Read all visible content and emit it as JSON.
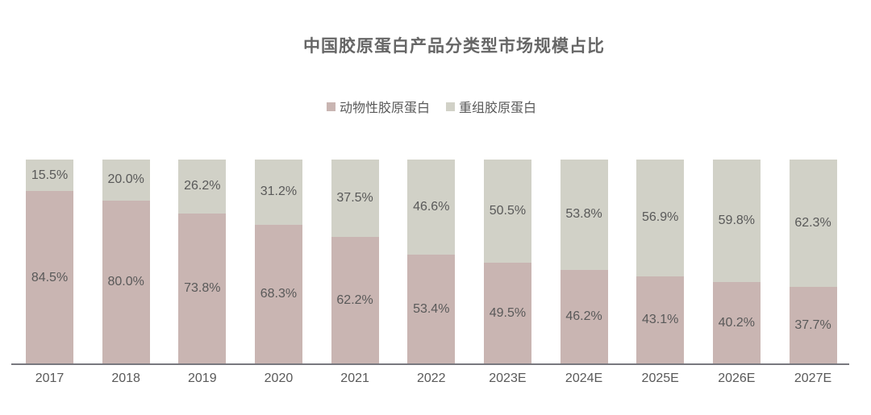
{
  "chart_data": {
    "type": "bar",
    "stacked": true,
    "percent": true,
    "title": "中国胶原蛋白产品分类型市场规模占比",
    "categories": [
      "2017",
      "2018",
      "2019",
      "2020",
      "2021",
      "2022",
      "2023E",
      "2024E",
      "2025E",
      "2026E",
      "2027E"
    ],
    "series": [
      {
        "name": "动物性胶原蛋白",
        "color": "#c9b5b2",
        "values": [
          84.5,
          80.0,
          73.8,
          68.3,
          62.2,
          53.4,
          49.5,
          46.2,
          43.1,
          40.2,
          37.7
        ]
      },
      {
        "name": "重组胶原蛋白",
        "color": "#d1d1c7",
        "values": [
          15.5,
          20.0,
          26.2,
          31.2,
          37.5,
          46.6,
          50.5,
          53.8,
          56.9,
          59.8,
          62.3
        ]
      }
    ],
    "ylim": [
      0,
      100
    ],
    "grid": false,
    "y_axis_visible": false,
    "legend_position": "top-center",
    "label_format": "{value}%",
    "text_color": "#595959",
    "title_color": "#666666",
    "axis_color": "#78787f"
  }
}
